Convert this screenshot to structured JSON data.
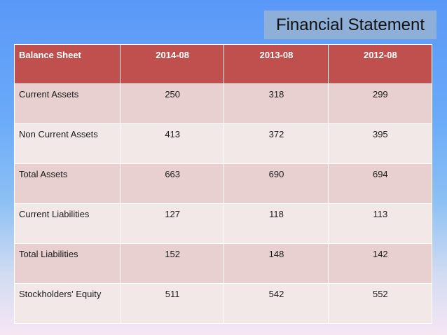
{
  "title": "Financial Statement",
  "table": {
    "headers": [
      "Balance Sheet",
      "2014-08",
      "2013-08",
      "2012-08"
    ],
    "rows": [
      {
        "label": "Current Assets",
        "values": [
          "250",
          "318",
          "299"
        ]
      },
      {
        "label": "Non Current Assets",
        "values": [
          "413",
          "372",
          "395"
        ]
      },
      {
        "label": "Total Assets",
        "values": [
          "663",
          "690",
          "694"
        ]
      },
      {
        "label": "Current Liabilities",
        "values": [
          "127",
          "118",
          "113"
        ]
      },
      {
        "label": "Total Liabilities",
        "values": [
          "152",
          "148",
          "142"
        ]
      },
      {
        "label": "Stockholders' Equity",
        "values": [
          "511",
          "542",
          "552"
        ]
      }
    ]
  },
  "colors": {
    "header": "#c0504d",
    "row_odd": "#e8d0d0",
    "row_even": "#f2e8e8",
    "title_box": "#8eb0d8"
  }
}
